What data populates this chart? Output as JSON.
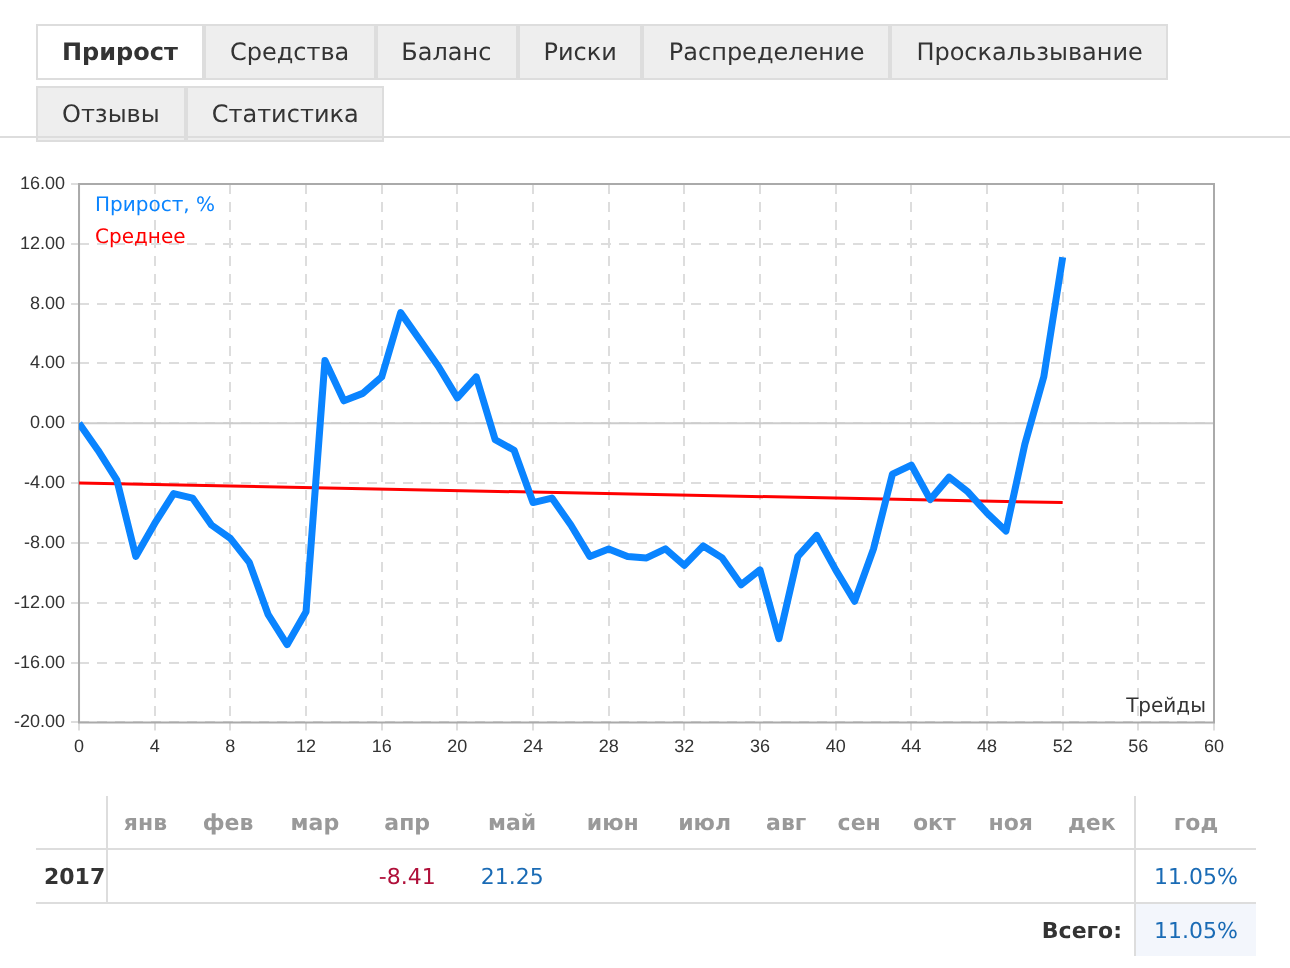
{
  "chart_data": {
    "type": "line",
    "xlabel": "Трейды",
    "legend": "top left",
    "grid": true,
    "x": [
      0,
      1,
      2,
      3,
      4,
      5,
      6,
      7,
      8,
      9,
      10,
      11,
      12,
      13,
      14,
      15,
      16,
      17,
      18,
      19,
      20,
      21,
      22,
      23,
      24,
      25,
      26,
      27,
      28,
      29,
      30,
      31,
      32,
      33,
      34,
      35,
      36,
      37,
      38,
      39,
      40,
      41,
      42,
      43,
      44,
      45,
      46,
      47,
      48,
      49,
      50,
      51,
      52
    ],
    "series": [
      {
        "name": "Прирост, %",
        "color": "#0a84ff",
        "values": [
          0,
          -1.8,
          -3.8,
          -8.9,
          -6.7,
          -4.7,
          -5.0,
          -6.8,
          -7.7,
          -9.3,
          -12.8,
          -14.8,
          -12.6,
          4.2,
          1.5,
          2.0,
          3.1,
          7.4,
          5.6,
          3.8,
          1.7,
          3.1,
          -1.1,
          -1.8,
          -5.3,
          -5.0,
          -6.8,
          -8.9,
          -8.4,
          -8.9,
          -9.0,
          -8.4,
          -9.5,
          -8.2,
          -9.0,
          -10.8,
          -9.8,
          -14.4,
          -8.9,
          -7.5,
          -9.8,
          -11.9,
          -8.4,
          -3.4,
          -2.8,
          -5.1,
          -3.6,
          -4.6,
          -6.0,
          -7.2,
          -1.4,
          3.1,
          11.1
        ]
      },
      {
        "name": "Среднее",
        "color": "#ff0000",
        "x": [
          0,
          52
        ],
        "values": [
          -4.0,
          -5.3
        ]
      }
    ],
    "xlim": [
      0,
      60
    ],
    "xticks": [
      0,
      4,
      8,
      12,
      16,
      20,
      24,
      28,
      32,
      36,
      40,
      44,
      48,
      52,
      56,
      60
    ],
    "ylim": [
      -20,
      16
    ],
    "yticks": [
      {
        "value": -20,
        "label": "-20.00"
      },
      {
        "value": -16,
        "label": "-16.00"
      },
      {
        "value": -12,
        "label": "-12.00"
      },
      {
        "value": -8,
        "label": "-8.00"
      },
      {
        "value": -4,
        "label": "-4.00"
      },
      {
        "value": 0,
        "label": "0.00"
      },
      {
        "value": 4,
        "label": "4.00"
      },
      {
        "value": 8,
        "label": "8.00"
      },
      {
        "value": 12,
        "label": "12.00"
      },
      {
        "value": 16,
        "label": "16.00"
      }
    ],
    "annotations": [
      "Прирост",
      "Средства",
      "Баланс",
      "Риски",
      "Распределение",
      "Проскальзывание",
      "Отзывы",
      "Статистика",
      "янв",
      "фев",
      "мар",
      "апр",
      "май",
      "июн",
      "июл",
      "авг",
      "сен",
      "окт",
      "ноя",
      "дек",
      "год",
      "2017",
      "-8.41",
      "21.25",
      "11.05%",
      "Всего:",
      "11.05%"
    ]
  }
}
